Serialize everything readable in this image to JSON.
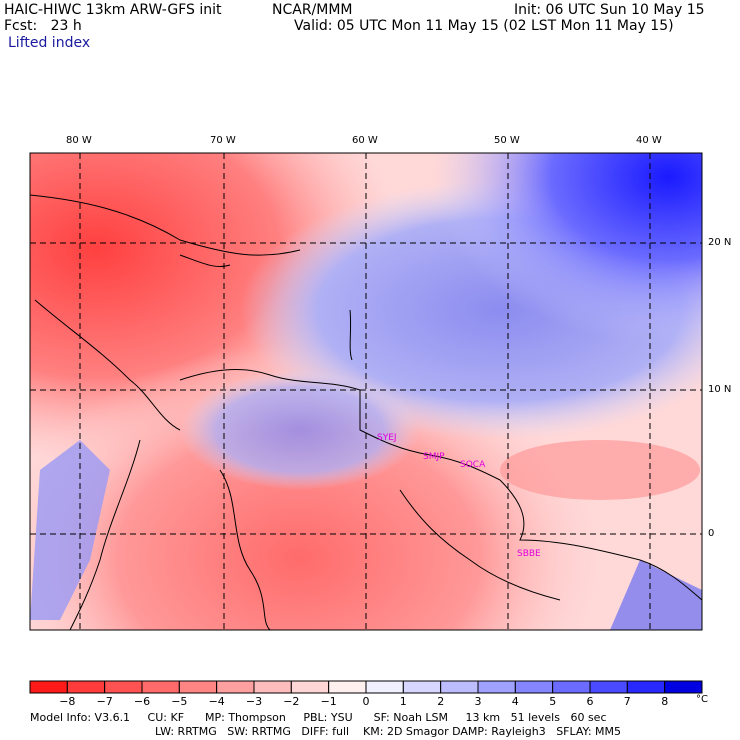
{
  "header": {
    "title_left": "HAIC-HIWC 13km ARW-GFS init",
    "center": "NCAR/MMM",
    "init": "Init: 06 UTC Sun 10 May 15",
    "fcst": "Fcst:   23 h",
    "valid": "Valid: 05 UTC Mon 11 May 15 (02 LST Mon 11 May 15)",
    "field": "Lifted index"
  },
  "map": {
    "lon_labels": [
      "80 W",
      "70 W",
      "60 W",
      "50 W",
      "40 W"
    ],
    "lat_labels": [
      "20 N",
      "10 N",
      "0"
    ],
    "stations": [
      "SYEJ",
      "SMJP",
      "SOCA",
      "SBBE"
    ],
    "station_color": "#e000e0"
  },
  "colorbar": {
    "labels": [
      "−8",
      "−7",
      "−6",
      "−5",
      "−4",
      "−3",
      "−2",
      "−1",
      "0",
      "1",
      "2",
      "3",
      "4",
      "5",
      "6",
      "7",
      "8"
    ],
    "unit": "°C",
    "colors": [
      "#ff1a1a",
      "#ff3b3b",
      "#ff5252",
      "#ff6b6b",
      "#ff8585",
      "#ffa0a0",
      "#ffbcbc",
      "#ffd6d6",
      "#fff0f0",
      "#f0f0ff",
      "#d6d6ff",
      "#bcbcff",
      "#a0a0ff",
      "#8585ff",
      "#6b6bff",
      "#4a4aff",
      "#2828ff",
      "#0000e0"
    ]
  },
  "model_info": {
    "line1": "Model Info: V3.6.1     CU: KF      MP: Thompson     PBL: YSU      SF: Noah LSM     13 km   51 levels   60 sec",
    "line2": "LW: RRTMG   SW: RRTMG   DIFF: full    KM: 2D Smagor DAMP: Rayleigh3   SFLAY: MM5"
  }
}
